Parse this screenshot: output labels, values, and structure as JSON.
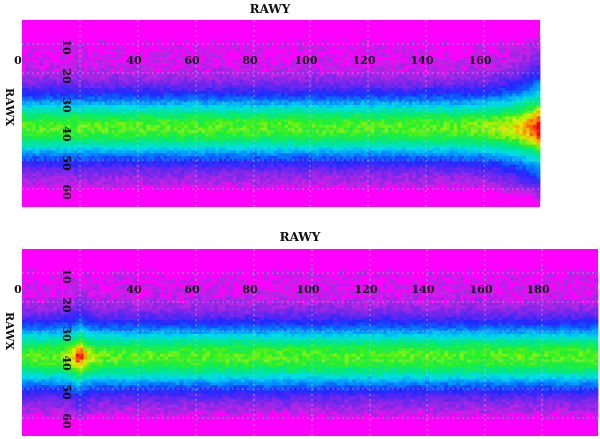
{
  "colors": {
    "background": "#ff00ff",
    "low": "#e61ee6",
    "mid": "#00d2ff",
    "high": "#ff0000",
    "grid": "#c8c8c8"
  },
  "chart_data": [
    {
      "type": "heatmap",
      "title": "RAWY",
      "xlabel": "",
      "ylabel": "RAWX",
      "x_ticks": [
        "0",
        "40",
        "60",
        "80",
        "100",
        "120",
        "140",
        "160"
      ],
      "y_ticks": [
        "10",
        "20",
        "30",
        "40",
        "50",
        "60"
      ],
      "xlim": [
        0,
        180
      ],
      "ylim": [
        0,
        66
      ],
      "grid": true,
      "colormap": "magenta-blue-cyan-green-yellow-red",
      "band": {
        "center_rawx": 38,
        "half_width_rawx": 6,
        "flare_at_rawy": 180,
        "peak_at_rawy": 180
      }
    },
    {
      "type": "heatmap",
      "title": "RAWY",
      "xlabel": "",
      "ylabel": "RAWX",
      "x_ticks": [
        "0",
        "40",
        "60",
        "80",
        "100",
        "120",
        "140",
        "160",
        "180"
      ],
      "y_ticks": [
        "10",
        "20",
        "30",
        "40",
        "50",
        "60"
      ],
      "xlim": [
        0,
        200
      ],
      "ylim": [
        0,
        66
      ],
      "grid": true,
      "colormap": "magenta-blue-cyan-green-yellow-red",
      "band": {
        "center_rawx": 38,
        "half_width_rawx": 6,
        "flare_at_rawy": 20,
        "peak_at_rawy": 20
      }
    }
  ]
}
